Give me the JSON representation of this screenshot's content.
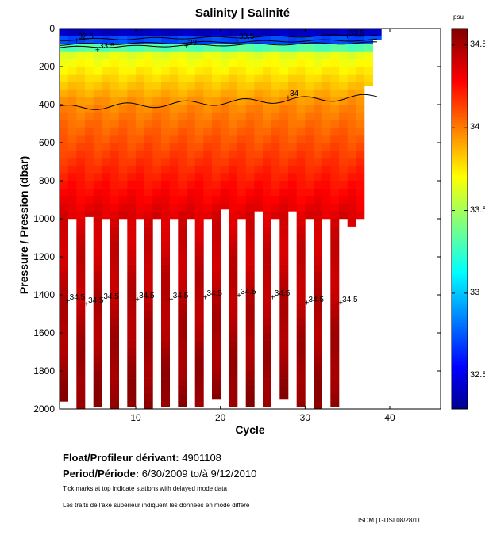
{
  "chart_data": {
    "type": "heatmap",
    "title": "Salinity | Salinité",
    "xlabel": "Cycle",
    "ylabel": "Pressure / Pression (dbar)",
    "xlim": [
      1,
      46
    ],
    "ylim": [
      2000,
      0
    ],
    "x_ticks": [
      10,
      20,
      30,
      40
    ],
    "y_ticks": [
      0,
      200,
      400,
      600,
      800,
      1000,
      1200,
      1400,
      1600,
      1800,
      2000
    ],
    "colorbar": {
      "unit": "psu",
      "range": [
        32.3,
        34.6
      ],
      "ticks": [
        "34.5",
        "34",
        "33.5",
        "33",
        "32.5"
      ],
      "colormap": "jet"
    },
    "contour_levels": [
      "32.5",
      "33",
      "33.5",
      "34",
      "34.5"
    ],
    "contour_labels": [
      {
        "text": "32.5",
        "cycle": 3,
        "pressure": 60
      },
      {
        "text": "33.5",
        "cycle": 5.5,
        "pressure": 110
      },
      {
        "text": "33",
        "cycle": 16,
        "pressure": 90
      },
      {
        "text": "33.5",
        "cycle": 22,
        "pressure": 60
      },
      {
        "text": "33.5",
        "cycle": 35,
        "pressure": 40
      },
      {
        "text": "34",
        "cycle": 28,
        "pressure": 360
      },
      {
        "text": "34.5",
        "cycle": 2,
        "pressure": 1430
      },
      {
        "text": "34.5",
        "cycle": 4.2,
        "pressure": 1445
      },
      {
        "text": "34.5",
        "cycle": 6,
        "pressure": 1425
      },
      {
        "text": "34.5",
        "cycle": 10.2,
        "pressure": 1420
      },
      {
        "text": "34.5",
        "cycle": 14.2,
        "pressure": 1420
      },
      {
        "text": "34.5",
        "cycle": 18.2,
        "pressure": 1410
      },
      {
        "text": "34.5",
        "cycle": 22.2,
        "pressure": 1400
      },
      {
        "text": "34.5",
        "cycle": 26.2,
        "pressure": 1410
      },
      {
        "text": "34.5",
        "cycle": 30.2,
        "pressure": 1440
      },
      {
        "text": "34.5",
        "cycle": 34.2,
        "pressure": 1440
      }
    ],
    "profiles_max_pressure": [
      1960,
      1000,
      2000,
      990,
      1990,
      1000,
      2000,
      1000,
      1990,
      1000,
      2000,
      1000,
      1990,
      1000,
      1990,
      1000,
      1990,
      1000,
      1950,
      950,
      1990,
      1000,
      1990,
      960,
      1990,
      1000,
      1950,
      960,
      1990,
      1000,
      2000,
      1000,
      1990,
      1000,
      1040,
      1000,
      300,
      60
    ]
  },
  "info": {
    "float_label": "Float/Profileur dérivant:",
    "float_id": "4901108",
    "period_label": "Period/Période:",
    "period_start": "6/30/2009",
    "period_sep": "to/à",
    "period_end": "9/12/2010",
    "note_en": "Tick marks at top indicate stations with delayed mode data",
    "note_fr": "Les traits de l'axe supérieur indiquent les données en mode différé"
  },
  "footer": "ISDM | GDSI 08/28/11"
}
